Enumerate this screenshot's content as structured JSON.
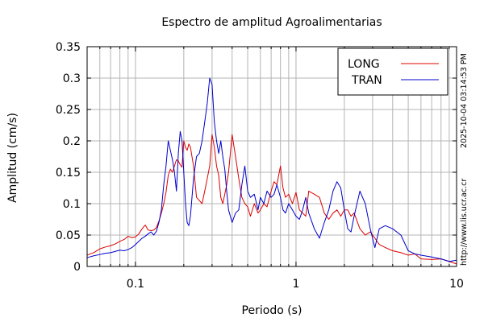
{
  "chart_data": {
    "type": "line",
    "title": "Espectro de amplitud Agroalimentarias",
    "xlabel": "Periodo (s)",
    "ylabel": "Amplitud (cm/s)",
    "xscale": "log",
    "xlim": [
      0.05,
      10
    ],
    "ylim": [
      0,
      0.35
    ],
    "xticks": [
      {
        "value": 0.1,
        "label": "0.1"
      },
      {
        "value": 1,
        "label": "1"
      },
      {
        "value": 10,
        "label": "10"
      }
    ],
    "yticks": [
      {
        "value": 0,
        "label": "0"
      },
      {
        "value": 0.05,
        "label": "0.05"
      },
      {
        "value": 0.1,
        "label": "0.1"
      },
      {
        "value": 0.15,
        "label": "0.15"
      },
      {
        "value": 0.2,
        "label": "0.2"
      },
      {
        "value": 0.25,
        "label": "0.25"
      },
      {
        "value": 0.3,
        "label": "0.3"
      },
      {
        "value": 0.35,
        "label": "0.35"
      }
    ],
    "grid": true,
    "legend_position": "top-right",
    "series": [
      {
        "name": "LONG",
        "color": "#dd0000",
        "x": [
          0.05,
          0.055,
          0.06,
          0.065,
          0.07,
          0.075,
          0.08,
          0.085,
          0.09,
          0.095,
          0.1,
          0.105,
          0.11,
          0.115,
          0.12,
          0.125,
          0.13,
          0.135,
          0.14,
          0.145,
          0.15,
          0.155,
          0.16,
          0.165,
          0.17,
          0.175,
          0.18,
          0.185,
          0.19,
          0.195,
          0.2,
          0.205,
          0.21,
          0.215,
          0.22,
          0.23,
          0.24,
          0.25,
          0.26,
          0.27,
          0.28,
          0.29,
          0.3,
          0.31,
          0.32,
          0.33,
          0.34,
          0.35,
          0.36,
          0.37,
          0.38,
          0.4,
          0.42,
          0.44,
          0.46,
          0.48,
          0.5,
          0.52,
          0.55,
          0.58,
          0.6,
          0.63,
          0.66,
          0.7,
          0.73,
          0.76,
          0.8,
          0.83,
          0.86,
          0.9,
          0.95,
          1.0,
          1.05,
          1.1,
          1.15,
          1.2,
          1.3,
          1.4,
          1.5,
          1.6,
          1.7,
          1.8,
          1.9,
          2.0,
          2.1,
          2.2,
          2.3,
          2.5,
          2.7,
          2.9,
          3.1,
          3.3,
          3.6,
          4.0,
          4.5,
          5.0,
          5.5,
          6.0,
          7.0,
          8.0,
          9.0,
          10.0
        ],
        "y": [
          0.018,
          0.022,
          0.028,
          0.031,
          0.033,
          0.036,
          0.04,
          0.043,
          0.048,
          0.046,
          0.047,
          0.052,
          0.06,
          0.066,
          0.058,
          0.057,
          0.058,
          0.062,
          0.072,
          0.085,
          0.1,
          0.118,
          0.145,
          0.155,
          0.15,
          0.16,
          0.17,
          0.168,
          0.162,
          0.158,
          0.2,
          0.19,
          0.185,
          0.195,
          0.19,
          0.16,
          0.11,
          0.105,
          0.1,
          0.12,
          0.14,
          0.16,
          0.21,
          0.19,
          0.16,
          0.145,
          0.11,
          0.1,
          0.115,
          0.13,
          0.15,
          0.21,
          0.175,
          0.14,
          0.11,
          0.1,
          0.095,
          0.08,
          0.1,
          0.085,
          0.09,
          0.1,
          0.095,
          0.12,
          0.135,
          0.13,
          0.16,
          0.125,
          0.11,
          0.115,
          0.1,
          0.118,
          0.09,
          0.085,
          0.08,
          0.12,
          0.115,
          0.11,
          0.085,
          0.075,
          0.085,
          0.09,
          0.08,
          0.09,
          0.09,
          0.08,
          0.085,
          0.06,
          0.05,
          0.055,
          0.045,
          0.035,
          0.03,
          0.025,
          0.022,
          0.018,
          0.02,
          0.012,
          0.011,
          0.012,
          0.008,
          0.004
        ]
      },
      {
        "name": "TRAN",
        "color": "#0000cc",
        "x": [
          0.05,
          0.055,
          0.06,
          0.065,
          0.07,
          0.075,
          0.08,
          0.085,
          0.09,
          0.095,
          0.1,
          0.105,
          0.11,
          0.115,
          0.12,
          0.125,
          0.13,
          0.135,
          0.14,
          0.145,
          0.15,
          0.155,
          0.16,
          0.165,
          0.17,
          0.175,
          0.18,
          0.185,
          0.19,
          0.195,
          0.2,
          0.205,
          0.21,
          0.215,
          0.22,
          0.23,
          0.24,
          0.25,
          0.26,
          0.27,
          0.28,
          0.29,
          0.3,
          0.31,
          0.32,
          0.33,
          0.34,
          0.35,
          0.36,
          0.37,
          0.38,
          0.4,
          0.42,
          0.44,
          0.46,
          0.48,
          0.5,
          0.52,
          0.55,
          0.58,
          0.6,
          0.63,
          0.66,
          0.7,
          0.73,
          0.76,
          0.8,
          0.83,
          0.86,
          0.9,
          0.95,
          1.0,
          1.05,
          1.1,
          1.15,
          1.2,
          1.3,
          1.4,
          1.5,
          1.6,
          1.7,
          1.8,
          1.9,
          2.0,
          2.1,
          2.2,
          2.3,
          2.5,
          2.7,
          2.9,
          3.1,
          3.3,
          3.6,
          4.0,
          4.5,
          5.0,
          5.5,
          6.0,
          7.0,
          8.0,
          9.0,
          10.0
        ],
        "y": [
          0.014,
          0.017,
          0.019,
          0.021,
          0.022,
          0.024,
          0.026,
          0.025,
          0.027,
          0.03,
          0.035,
          0.04,
          0.045,
          0.048,
          0.052,
          0.055,
          0.05,
          0.056,
          0.07,
          0.09,
          0.13,
          0.16,
          0.2,
          0.185,
          0.17,
          0.15,
          0.12,
          0.18,
          0.215,
          0.2,
          0.15,
          0.1,
          0.07,
          0.065,
          0.08,
          0.14,
          0.175,
          0.18,
          0.2,
          0.23,
          0.26,
          0.3,
          0.29,
          0.23,
          0.2,
          0.18,
          0.2,
          0.175,
          0.155,
          0.12,
          0.09,
          0.07,
          0.085,
          0.09,
          0.13,
          0.16,
          0.12,
          0.11,
          0.115,
          0.09,
          0.11,
          0.1,
          0.12,
          0.11,
          0.115,
          0.13,
          0.11,
          0.09,
          0.085,
          0.1,
          0.09,
          0.08,
          0.075,
          0.09,
          0.11,
          0.085,
          0.06,
          0.045,
          0.07,
          0.09,
          0.12,
          0.135,
          0.125,
          0.09,
          0.06,
          0.055,
          0.08,
          0.12,
          0.1,
          0.06,
          0.03,
          0.06,
          0.065,
          0.06,
          0.05,
          0.025,
          0.02,
          0.018,
          0.015,
          0.012,
          0.008,
          0.01
        ]
      }
    ]
  },
  "side_text": {
    "timestamp": "2025-10-04 03:14:53 PM",
    "url": "http://www.lis.ucr.ac.cr"
  }
}
